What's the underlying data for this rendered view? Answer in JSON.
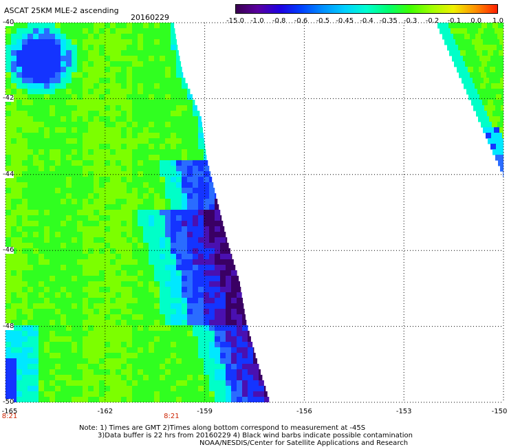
{
  "header": {
    "title": "ASCAT 25KM MLE-2 ascending",
    "date": "20160229"
  },
  "colorbar": {
    "labels": [
      "-15.0",
      "-1.0",
      "-0.8",
      "-0.6",
      "-0.5",
      "-0.45",
      "-0.4",
      "-0.35",
      "-0.3",
      "-0.2",
      "-0.1",
      "0.0",
      "1.0"
    ],
    "colors": [
      "#3a0050",
      "#5a00a0",
      "#2000e0",
      "#0040ff",
      "#0090ff",
      "#00d0ff",
      "#00ffd0",
      "#00ff70",
      "#40ff00",
      "#a0ff00",
      "#f0f000",
      "#ff9000",
      "#ff2000"
    ]
  },
  "map": {
    "lon_ticks": [
      "-165",
      "-162",
      "-159",
      "-156",
      "-153",
      "-150"
    ],
    "lat_ticks": [
      "-40",
      "-42",
      "-44",
      "-46",
      "-48",
      "-50"
    ],
    "lon_range": [
      -165,
      -150
    ],
    "lat_range": [
      -40,
      -50
    ],
    "time_labels": [
      {
        "text": "8:21",
        "lon": -165
      },
      {
        "text": "8:21",
        "lon": -160
      }
    ],
    "palette": {
      "darkpurple": "#3a0064",
      "indigo": "#4a10b0",
      "blue": "#1434ff",
      "midblue": "#2a6cff",
      "cyan": "#00e8ff",
      "aqua": "#00ffc8",
      "green": "#30ff20",
      "lime": "#7cff00"
    }
  },
  "notes": {
    "line1": "Note: 1) Times are GMT 2)Times along bottom correspond to measurement at -45S",
    "line2": "3)Data buffer is 22 hrs from 20160229 4) Black wind barbs indicate possible contamination",
    "line3": "NOAA/NESDIS/Center for Satellite Applications and Research"
  }
}
